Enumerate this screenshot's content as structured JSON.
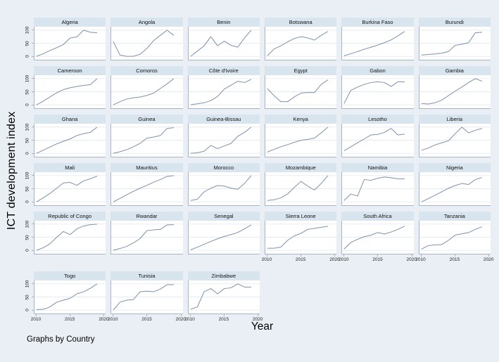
{
  "figure": {
    "ylabel": "ICT development index",
    "xlabel": "Year",
    "caption": "Graphs by Country"
  },
  "colors": {
    "background": "#e9eff4",
    "panel_header": "#d9e5ee",
    "plot_background": "#ffffff",
    "gridline": "#e3ebf2",
    "axis_line": "#a7b6c4",
    "line": "#7d91ad",
    "text": "#111111"
  },
  "chart_data": {
    "type": "line",
    "layout": "small-multiples-by-country",
    "title": "",
    "ylabel": "ICT development index",
    "xlabel": "Year",
    "note": "Graphs by Country",
    "columns": 6,
    "grid": true,
    "legend": "none",
    "x": [
      2010,
      2011,
      2012,
      2013,
      2014,
      2015,
      2016,
      2017,
      2018,
      2019
    ],
    "xticks": [
      2010,
      2015,
      2020
    ],
    "yticks": [
      0,
      50,
      100
    ],
    "xlim": [
      2009.7,
      2020.3
    ],
    "ylim": [
      -13,
      113
    ],
    "line_color": "#7d91ad",
    "series": [
      {
        "name": "Algeria",
        "values": [
          0,
          10,
          22,
          33,
          45,
          70,
          74,
          100,
          92,
          90
        ]
      },
      {
        "name": "Angola",
        "values": [
          57,
          5,
          0,
          0,
          8,
          30,
          60,
          80,
          100,
          80
        ]
      },
      {
        "name": "Benin",
        "values": [
          0,
          20,
          40,
          75,
          40,
          58,
          42,
          35,
          70,
          100
        ]
      },
      {
        "name": "Botswana",
        "values": [
          2,
          28,
          40,
          55,
          68,
          75,
          70,
          62,
          80,
          95
        ]
      },
      {
        "name": "Burkina Faso",
        "values": [
          2,
          10,
          18,
          27,
          35,
          43,
          52,
          63,
          78,
          95
        ]
      },
      {
        "name": "Burundi",
        "values": [
          5,
          7,
          9,
          12,
          18,
          42,
          46,
          52,
          90,
          92
        ]
      },
      {
        "name": "Cameroon",
        "values": [
          0,
          14,
          30,
          46,
          58,
          65,
          70,
          74,
          77,
          100
        ]
      },
      {
        "name": "Comoros",
        "values": [
          0,
          12,
          22,
          27,
          30,
          36,
          45,
          62,
          80,
          100
        ]
      },
      {
        "name": "Côte d'Ivoire",
        "values": [
          0,
          4,
          8,
          16,
          32,
          60,
          75,
          90,
          85,
          97
        ]
      },
      {
        "name": "Egypt",
        "values": [
          62,
          35,
          12,
          12,
          30,
          45,
          47,
          47,
          78,
          95
        ]
      },
      {
        "name": "Gabon",
        "values": [
          5,
          55,
          68,
          78,
          85,
          88,
          85,
          70,
          88,
          88
        ]
      },
      {
        "name": "Gambia",
        "values": [
          5,
          3,
          8,
          18,
          35,
          52,
          68,
          85,
          100,
          90
        ]
      },
      {
        "name": "Ghana",
        "values": [
          0,
          12,
          24,
          36,
          46,
          55,
          68,
          75,
          80,
          100
        ]
      },
      {
        "name": "Guinea",
        "values": [
          0,
          6,
          14,
          25,
          38,
          58,
          62,
          68,
          95,
          98
        ]
      },
      {
        "name": "Guinea-Bissau",
        "values": [
          0,
          2,
          8,
          30,
          18,
          28,
          38,
          65,
          80,
          100
        ]
      },
      {
        "name": "Kenya",
        "values": [
          5,
          15,
          25,
          33,
          42,
          50,
          53,
          58,
          78,
          100
        ]
      },
      {
        "name": "Lesotho",
        "values": [
          10,
          25,
          40,
          55,
          70,
          72,
          80,
          95,
          70,
          73
        ]
      },
      {
        "name": "Liberia",
        "values": [
          12,
          20,
          32,
          40,
          48,
          75,
          100,
          78,
          88,
          95
        ]
      },
      {
        "name": "Mali",
        "values": [
          0,
          15,
          32,
          52,
          72,
          74,
          63,
          80,
          88,
          98
        ]
      },
      {
        "name": "Mauritius",
        "values": [
          0,
          13,
          27,
          40,
          52,
          63,
          75,
          85,
          97,
          100
        ]
      },
      {
        "name": "Morocco",
        "values": [
          5,
          10,
          38,
          52,
          62,
          60,
          52,
          48,
          70,
          100
        ]
      },
      {
        "name": "Mozambique",
        "values": [
          5,
          8,
          15,
          30,
          55,
          78,
          60,
          45,
          70,
          100
        ]
      },
      {
        "name": "Namibia",
        "values": [
          5,
          30,
          22,
          85,
          82,
          90,
          95,
          92,
          88,
          88
        ]
      },
      {
        "name": "Nigeria",
        "values": [
          0,
          12,
          25,
          38,
          52,
          62,
          70,
          66,
          85,
          93
        ]
      },
      {
        "name": "Republic of Congo",
        "values": [
          0,
          10,
          25,
          50,
          72,
          60,
          82,
          93,
          98,
          100
        ]
      },
      {
        "name": "Rwandar",
        "values": [
          0,
          7,
          15,
          28,
          45,
          75,
          78,
          80,
          97,
          98
        ]
      },
      {
        "name": "Senegal",
        "values": [
          2,
          12,
          23,
          34,
          44,
          53,
          60,
          68,
          82,
          97
        ]
      },
      {
        "name": "Sierra Leone",
        "values": [
          8,
          8,
          12,
          38,
          55,
          65,
          80,
          84,
          88,
          92
        ]
      },
      {
        "name": "South Africa",
        "values": [
          5,
          30,
          42,
          52,
          58,
          68,
          62,
          70,
          80,
          92
        ]
      },
      {
        "name": "Tanzania",
        "values": [
          5,
          18,
          21,
          22,
          38,
          58,
          63,
          68,
          80,
          90
        ]
      },
      {
        "name": "Togo",
        "values": [
          2,
          3,
          12,
          30,
          38,
          45,
          62,
          70,
          83,
          100
        ]
      },
      {
        "name": "Tunisia",
        "values": [
          0,
          30,
          38,
          40,
          70,
          72,
          70,
          80,
          97,
          97
        ]
      },
      {
        "name": "Zimbabwe",
        "values": [
          3,
          12,
          70,
          82,
          62,
          82,
          85,
          100,
          88,
          88
        ]
      }
    ]
  }
}
